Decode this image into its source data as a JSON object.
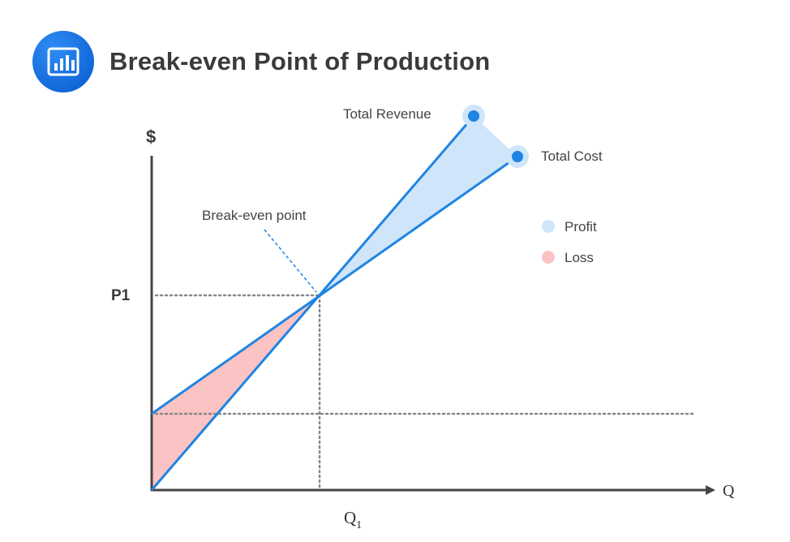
{
  "header": {
    "title": "Break-even Point of Production",
    "icon": "bar-chart-icon",
    "icon_color": "#1a73e8"
  },
  "axes": {
    "y_label": "$",
    "x_label": "Q",
    "x_tick_main": "Q",
    "x_tick_sub": "1",
    "y_tick": "P1"
  },
  "lines": {
    "total_revenue": "Total Revenue",
    "total_cost": "Total Cost",
    "line_color": "#1f84e3"
  },
  "annotations": {
    "break_even": "Break-even point"
  },
  "legend": {
    "items": [
      {
        "label": "Profit",
        "color": "#cfe5fa"
      },
      {
        "label": "Loss",
        "color": "#fbc3c3"
      }
    ]
  }
}
